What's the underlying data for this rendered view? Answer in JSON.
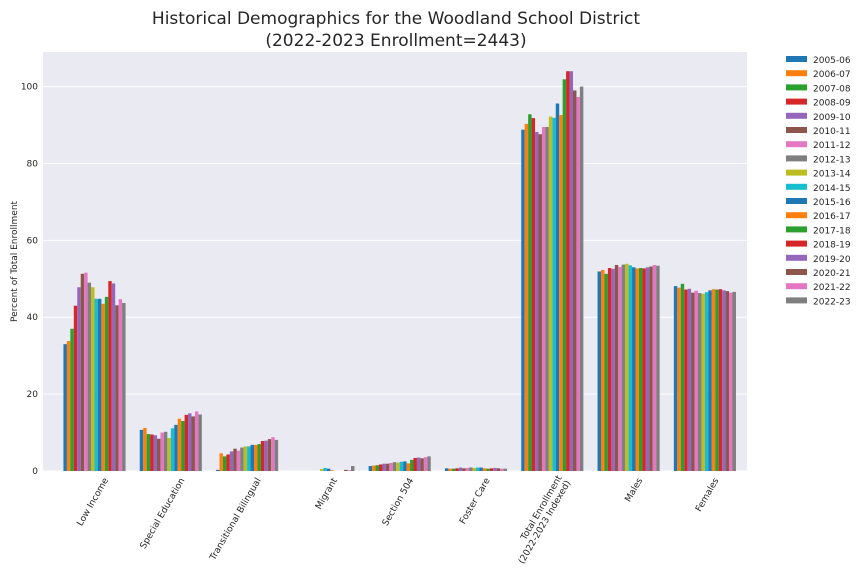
{
  "chart_data": {
    "type": "bar",
    "title_line1": "Historical Demographics for the Woodland School District",
    "title_line2": "(2022-2023 Enrollment=2443)",
    "xlabel": "",
    "ylabel": "Percent of Total Enrollment",
    "ylim": [
      0,
      109
    ],
    "yticks": [
      "0",
      "20",
      "40",
      "60",
      "80",
      "100"
    ],
    "grid": true,
    "legend_position": "outside-right",
    "categories": [
      "Low Income",
      "Special Education",
      "Transitional Bilingual",
      "Migrant",
      "Section 504",
      "Foster Care",
      "Total Enrollment\n(2022-2023 Indexed)",
      "Males",
      "Females"
    ],
    "series": [
      {
        "name": "2005-06",
        "color": "#1f77b4",
        "values": [
          33.0,
          10.7,
          0.3,
          0.0,
          1.3,
          0.7,
          88.8,
          51.9,
          48.1
        ]
      },
      {
        "name": "2006-07",
        "color": "#ff7f0e",
        "values": [
          33.8,
          11.2,
          4.6,
          0.0,
          1.4,
          0.6,
          90.3,
          52.3,
          47.7
        ]
      },
      {
        "name": "2007-08",
        "color": "#2ca02c",
        "values": [
          37.0,
          9.6,
          3.8,
          0.0,
          1.5,
          0.6,
          92.8,
          51.3,
          48.7
        ]
      },
      {
        "name": "2008-09",
        "color": "#d62728",
        "values": [
          43.0,
          9.5,
          4.3,
          0.0,
          1.7,
          0.7,
          91.8,
          52.8,
          47.2
        ]
      },
      {
        "name": "2009-10",
        "color": "#9467bd",
        "values": [
          47.8,
          9.3,
          5.1,
          0.0,
          1.9,
          0.9,
          88.2,
          52.6,
          47.4
        ]
      },
      {
        "name": "2010-11",
        "color": "#8c564b",
        "values": [
          51.3,
          8.4,
          5.8,
          0.0,
          1.9,
          0.7,
          87.6,
          53.6,
          46.4
        ]
      },
      {
        "name": "2011-12",
        "color": "#e377c2",
        "values": [
          51.6,
          10.0,
          5.3,
          0.0,
          2.1,
          0.8,
          89.5,
          53.1,
          46.9
        ]
      },
      {
        "name": "2012-13",
        "color": "#7f7f7f",
        "values": [
          49.0,
          10.2,
          6.1,
          0.0,
          2.3,
          0.9,
          89.5,
          53.7,
          46.3
        ]
      },
      {
        "name": "2013-14",
        "color": "#bcbd22",
        "values": [
          47.8,
          8.6,
          6.4,
          0.5,
          2.2,
          0.8,
          92.2,
          53.9,
          46.1
        ]
      },
      {
        "name": "2014-15",
        "color": "#17becf",
        "values": [
          44.8,
          11.1,
          6.4,
          0.8,
          2.4,
          0.9,
          91.9,
          53.5,
          46.5
        ]
      },
      {
        "name": "2015-16",
        "color": "#1f77b4",
        "values": [
          44.8,
          12.0,
          6.8,
          0.6,
          2.5,
          0.9,
          95.6,
          53.0,
          47.0
        ]
      },
      {
        "name": "2016-17",
        "color": "#ff7f0e",
        "values": [
          43.5,
          13.6,
          6.8,
          0.2,
          2.0,
          0.7,
          92.6,
          52.7,
          47.3
        ]
      },
      {
        "name": "2017-18",
        "color": "#2ca02c",
        "values": [
          45.3,
          13.0,
          7.0,
          0.0,
          2.9,
          0.6,
          101.9,
          52.8,
          47.2
        ]
      },
      {
        "name": "2018-19",
        "color": "#d62728",
        "values": [
          49.4,
          14.6,
          7.8,
          0.0,
          3.4,
          0.7,
          104.0,
          52.7,
          47.3
        ]
      },
      {
        "name": "2019-20",
        "color": "#9467bd",
        "values": [
          48.8,
          15.0,
          7.9,
          0.0,
          3.5,
          0.8,
          104.0,
          53.0,
          47.0
        ]
      },
      {
        "name": "2020-21",
        "color": "#8c564b",
        "values": [
          43.1,
          14.2,
          8.3,
          0.3,
          3.3,
          0.7,
          99.0,
          53.2,
          46.8
        ]
      },
      {
        "name": "2021-22",
        "color": "#e377c2",
        "values": [
          44.7,
          15.5,
          8.8,
          0.2,
          3.6,
          0.6,
          97.3,
          53.6,
          46.4
        ]
      },
      {
        "name": "2022-23",
        "color": "#7f7f7f",
        "values": [
          43.7,
          14.7,
          8.1,
          1.3,
          3.8,
          0.6,
          100.0,
          53.4,
          46.6
        ]
      }
    ]
  }
}
